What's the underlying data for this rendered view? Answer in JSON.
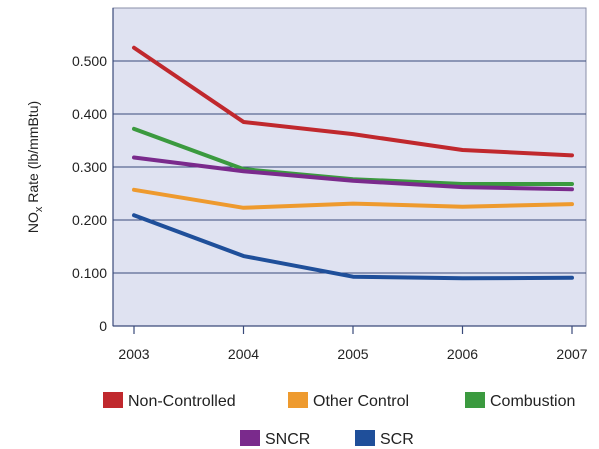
{
  "chart_data": {
    "type": "line",
    "title": "",
    "xlabel": "",
    "ylabel": {
      "prefix": "NO",
      "subscript": "x",
      "suffix": " Rate (lb/mmBtu)"
    },
    "x": [
      "2003",
      "2004",
      "2005",
      "2006",
      "2007"
    ],
    "ylim": [
      0,
      0.6
    ],
    "yticks": [
      0,
      0.1,
      0.2,
      0.3,
      0.4,
      0.5
    ],
    "ytick_labels": [
      "0",
      "0.100",
      "0.200",
      "0.300",
      "0.400",
      "0.500"
    ],
    "grid": "horizontal",
    "background_color": "#dfe2f1",
    "legend_position": "bottom",
    "series": [
      {
        "name": "Non-Controlled",
        "color": "#c0282d",
        "values": [
          0.525,
          0.385,
          0.362,
          0.332,
          0.322
        ]
      },
      {
        "name": "Other Control",
        "color": "#ee9a2e",
        "values": [
          0.257,
          0.223,
          0.231,
          0.225,
          0.23
        ]
      },
      {
        "name": "Combustion",
        "color": "#3b9a3f",
        "values": [
          0.372,
          0.296,
          0.277,
          0.268,
          0.268
        ]
      },
      {
        "name": "SNCR",
        "color": "#7a2a8c",
        "values": [
          0.318,
          0.292,
          0.274,
          0.262,
          0.258
        ]
      },
      {
        "name": "SCR",
        "color": "#1f4f9a",
        "values": [
          0.209,
          0.132,
          0.093,
          0.09,
          0.091
        ]
      }
    ]
  }
}
